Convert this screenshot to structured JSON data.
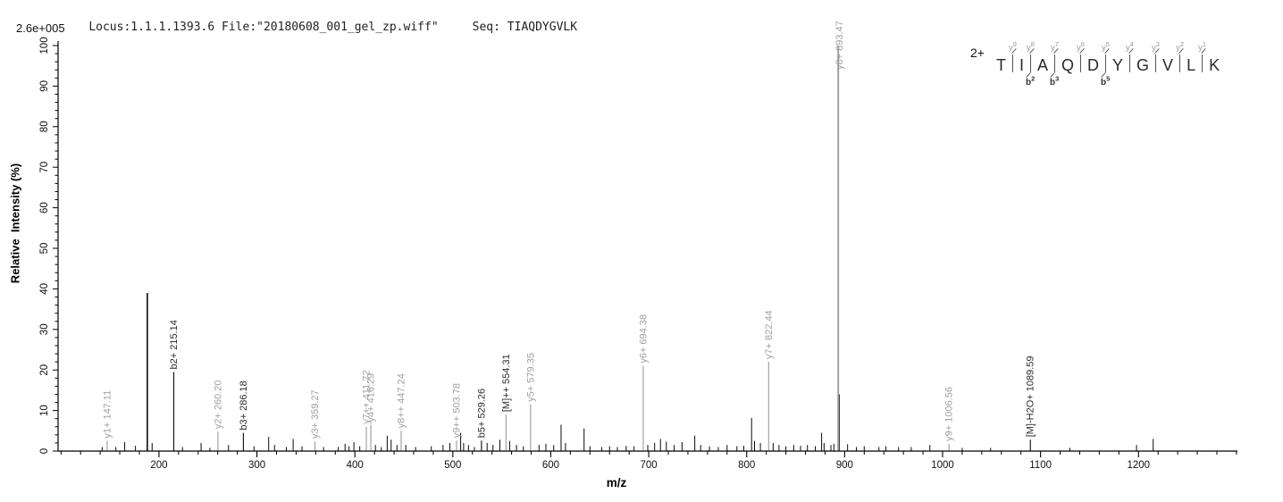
{
  "header": {
    "locus_file": "Locus:1.1.1.1393.6 File:\"20180608_001_gel_zp.wiff\"",
    "seq": "Seq: TIAQDYGVLK",
    "max_intensity": "2.6e+005"
  },
  "peptide": {
    "charge": "2+",
    "residues": [
      "T",
      "I",
      "A",
      "Q",
      "D",
      "Y",
      "G",
      "V",
      "L",
      "K"
    ],
    "boundaries": [
      {
        "y": "y9",
        "b": null
      },
      {
        "y": "y8",
        "b": "b2"
      },
      {
        "y": "y7",
        "b": "b3"
      },
      {
        "y": "y6",
        "b": null
      },
      {
        "y": "y5",
        "b": "b5"
      },
      {
        "y": "y4",
        "b": null
      },
      {
        "y": "y3",
        "b": null
      },
      {
        "y": "y2",
        "b": null
      },
      {
        "y": "y1",
        "b": null
      }
    ]
  },
  "chart_data": {
    "type": "bar",
    "subtype": "ms2-centroid-stick-spectrum",
    "title": "Locus:1.1.1.1393.6 File:\"20180608_001_gel_zp.wiff\"  Seq: TIAQDYGVLK",
    "xlabel": "m/z",
    "ylabel": "Relative  Intensity (%)",
    "xlim": [
      97,
      1301
    ],
    "ylim": [
      0,
      100
    ],
    "x_ticks": [
      200,
      300,
      400,
      500,
      600,
      700,
      800,
      900,
      1000,
      1100,
      1200
    ],
    "x_minor_start": 100,
    "x_minor_step": 20,
    "y_ticks": [
      0,
      10,
      20,
      30,
      40,
      50,
      60,
      70,
      80,
      90,
      100
    ],
    "y_minor_step": 2,
    "grid": false,
    "legend": "none",
    "colors": {
      "matched_peak": "#9a9a9a",
      "unmatched_peak": "#0a0a0a",
      "matched_label": "#a0a0a0",
      "dark_label": "#2b2b2b",
      "axis": "#000000"
    },
    "labeled_peaks": [
      {
        "mz": 147.11,
        "intensity": 2.5,
        "ion": "y1+",
        "label": "y1+ 147.11",
        "shade": "gray",
        "label_shade": "gray"
      },
      {
        "mz": 215.14,
        "intensity": 19.5,
        "ion": "b2+",
        "label": "b2+ 215.14",
        "shade": "black",
        "label_shade": "dark"
      },
      {
        "mz": 260.2,
        "intensity": 4.8,
        "ion": "y2+",
        "label": "y2+ 260.20",
        "shade": "gray",
        "label_shade": "gray"
      },
      {
        "mz": 286.18,
        "intensity": 4.5,
        "ion": "b3+",
        "label": "b3+ 286.18",
        "shade": "black",
        "label_shade": "dark"
      },
      {
        "mz": 359.27,
        "intensity": 2.4,
        "ion": "y3+",
        "label": "y3+ 359.27",
        "shade": "gray",
        "label_shade": "gray"
      },
      {
        "mz": 411.72,
        "intensity": 6.0,
        "ion": "y7++",
        "label": "y7++ 411.72",
        "shade": "gray",
        "label_shade": "gray"
      },
      {
        "mz": 416.29,
        "intensity": 6.5,
        "ion": "y4+",
        "label": "y4+ 416.29",
        "shade": "gray",
        "label_shade": "gray"
      },
      {
        "mz": 447.24,
        "intensity": 5.0,
        "ion": "y8++",
        "label": "y8++ 447.24",
        "shade": "gray",
        "label_shade": "gray"
      },
      {
        "mz": 503.78,
        "intensity": 2.6,
        "ion": "y9++",
        "label": "y9++ 503.78",
        "shade": "gray",
        "label_shade": "gray"
      },
      {
        "mz": 529.26,
        "intensity": 2.6,
        "ion": "b5+",
        "label": "b5+ 529.26",
        "shade": "black",
        "label_shade": "dark"
      },
      {
        "mz": 554.31,
        "intensity": 9.0,
        "ion": "[M]++",
        "label": "[M]++ 554.31",
        "shade": "gray",
        "label_shade": "dark"
      },
      {
        "mz": 579.35,
        "intensity": 11.5,
        "ion": "y5+",
        "label": "y5+ 579.35",
        "shade": "gray",
        "label_shade": "gray"
      },
      {
        "mz": 694.38,
        "intensity": 21.0,
        "ion": "y6+",
        "label": "y6+ 694.38",
        "shade": "gray",
        "label_shade": "gray"
      },
      {
        "mz": 822.44,
        "intensity": 22.0,
        "ion": "y7+",
        "label": "y7+ 822.44",
        "shade": "gray",
        "label_shade": "gray"
      },
      {
        "mz": 893.47,
        "intensity": 100.0,
        "ion": "y8+",
        "label": "y8+ 893.47",
        "shade": "gray",
        "label_shade": "gray"
      },
      {
        "mz": 1006.56,
        "intensity": 1.8,
        "ion": "y9+",
        "label": "y9+ 1006.56",
        "shade": "gray",
        "label_shade": "gray"
      },
      {
        "mz": 1089.59,
        "intensity": 2.8,
        "ion": "[M]-H2O+",
        "label": "[M]-H2O+ 1089.59",
        "shade": "black",
        "label_shade": "dark"
      }
    ],
    "noise_peaks": [
      [
        142,
        1
      ],
      [
        156,
        1
      ],
      [
        165,
        2.2
      ],
      [
        176,
        1.3
      ],
      [
        188.1,
        39
      ],
      [
        193,
        2
      ],
      [
        224,
        1
      ],
      [
        243,
        2
      ],
      [
        252,
        0.8
      ],
      [
        271,
        1.5
      ],
      [
        297,
        1.2
      ],
      [
        312,
        3.5
      ],
      [
        318,
        1.5
      ],
      [
        330,
        1
      ],
      [
        337,
        3
      ],
      [
        346,
        1.2
      ],
      [
        368,
        1
      ],
      [
        383,
        1
      ],
      [
        390,
        1.8
      ],
      [
        394,
        1.2
      ],
      [
        399,
        2.2
      ],
      [
        405,
        1.2
      ],
      [
        421,
        1.5
      ],
      [
        427,
        1
      ],
      [
        433,
        3.8
      ],
      [
        437,
        2.8
      ],
      [
        443,
        1.5
      ],
      [
        452,
        1.5
      ],
      [
        462,
        1
      ],
      [
        478,
        1.2
      ],
      [
        490,
        1.5
      ],
      [
        497,
        2
      ],
      [
        508,
        4.5
      ],
      [
        511,
        2
      ],
      [
        516,
        1.5
      ],
      [
        522,
        1
      ],
      [
        535,
        2
      ],
      [
        541,
        1.5
      ],
      [
        548,
        2.8
      ],
      [
        558,
        2.5
      ],
      [
        565,
        1.5
      ],
      [
        572,
        1.2
      ],
      [
        588,
        1.5
      ],
      [
        595,
        1.8
      ],
      [
        603,
        1.5
      ],
      [
        610.5,
        6.5
      ],
      [
        615,
        2
      ],
      [
        634,
        5.6
      ],
      [
        640,
        1.2
      ],
      [
        652,
        1
      ],
      [
        660,
        1.2
      ],
      [
        668,
        1
      ],
      [
        677,
        1.3
      ],
      [
        685,
        1.2
      ],
      [
        699,
        1.5
      ],
      [
        706,
        2
      ],
      [
        712,
        3
      ],
      [
        718,
        2.3
      ],
      [
        726,
        1.5
      ],
      [
        734,
        2.2
      ],
      [
        747,
        3.8
      ],
      [
        753,
        1.5
      ],
      [
        762,
        1.2
      ],
      [
        771,
        1
      ],
      [
        780,
        1.5
      ],
      [
        790,
        1.2
      ],
      [
        797,
        1.3
      ],
      [
        805,
        8.2
      ],
      [
        808,
        2.5
      ],
      [
        814,
        2
      ],
      [
        827,
        2
      ],
      [
        833,
        1.5
      ],
      [
        840,
        1.2
      ],
      [
        848,
        1.5
      ],
      [
        855,
        1.3
      ],
      [
        862,
        1.5
      ],
      [
        870,
        1.2
      ],
      [
        876.5,
        4.5
      ],
      [
        879,
        2
      ],
      [
        886,
        1.5
      ],
      [
        889,
        1.8
      ],
      [
        894.5,
        14
      ],
      [
        903,
        1.7
      ],
      [
        912,
        1
      ],
      [
        920,
        1.2
      ],
      [
        935,
        1
      ],
      [
        942,
        1.2
      ],
      [
        955,
        1
      ],
      [
        968,
        1
      ],
      [
        987,
        1.5
      ],
      [
        1020,
        0.8
      ],
      [
        1049,
        0.8
      ],
      [
        1130,
        0.8
      ],
      [
        1198,
        1.5
      ],
      [
        1215,
        3
      ]
    ]
  }
}
